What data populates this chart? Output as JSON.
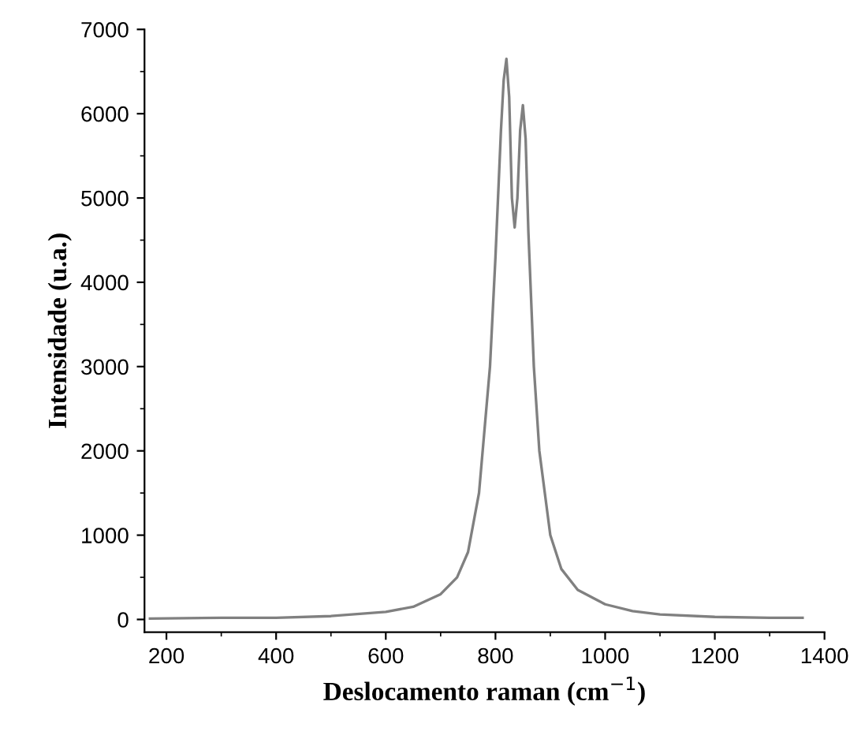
{
  "chart_data": {
    "type": "line",
    "xlabel": "Deslocamento raman (cm$^{−1}$)",
    "ylabel": "Intensidade (u.a.)",
    "x": [
      170,
      300,
      400,
      500,
      600,
      650,
      700,
      730,
      750,
      770,
      790,
      800,
      810,
      815,
      820,
      825,
      830,
      835,
      840,
      845,
      850,
      855,
      860,
      870,
      880,
      900,
      920,
      950,
      1000,
      1050,
      1100,
      1200,
      1300,
      1360
    ],
    "series": [
      {
        "color": "#808080",
        "values": [
          10,
          20,
          20,
          40,
          90,
          150,
          300,
          500,
          800,
          1500,
          3000,
          4300,
          5800,
          6400,
          6650,
          6200,
          5000,
          4650,
          5000,
          5800,
          6100,
          5700,
          4600,
          3000,
          2000,
          1000,
          600,
          350,
          180,
          100,
          60,
          30,
          20,
          20
        ]
      }
    ],
    "xlim": [
      160,
      1400
    ],
    "ylim": [
      -150,
      7000
    ],
    "xticks": [
      200,
      400,
      600,
      800,
      1000,
      1200,
      1400
    ],
    "yticks": [
      0,
      1000,
      2000,
      3000,
      4000,
      5000,
      6000,
      7000
    ],
    "grid": false,
    "legend": false
  }
}
